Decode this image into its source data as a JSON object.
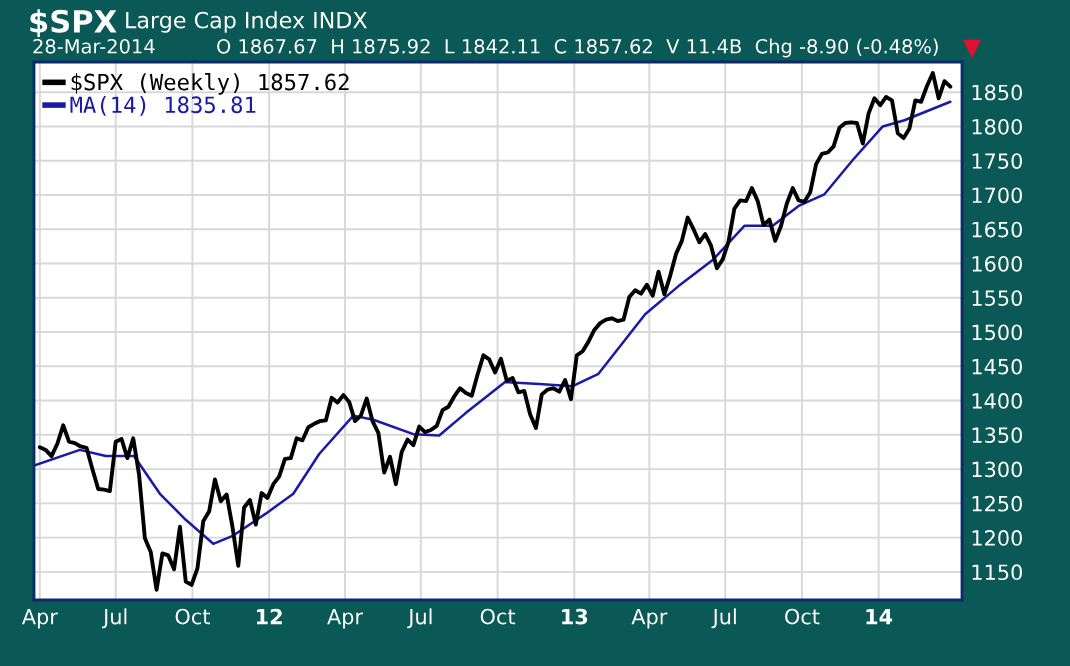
{
  "chart_data": {
    "type": "line",
    "title": "$SPX",
    "subtitle": "Large Cap Index INDX",
    "annotations": [
      "28-Mar-2014",
      "O 1867.67  H 1875.92  L 1842.11  C 1857.62  V 11.4B  Chg -8.90 (-0.48%)"
    ],
    "x": [
      "2011-04-01",
      "2011-04-08",
      "2011-04-15",
      "2011-04-22",
      "2011-04-29",
      "2011-05-06",
      "2011-05-13",
      "2011-05-20",
      "2011-05-27",
      "2011-06-03",
      "2011-06-10",
      "2011-06-17",
      "2011-06-24",
      "2011-07-01",
      "2011-07-08",
      "2011-07-15",
      "2011-07-22",
      "2011-07-29",
      "2011-08-05",
      "2011-08-12",
      "2011-08-19",
      "2011-08-26",
      "2011-09-02",
      "2011-09-09",
      "2011-09-16",
      "2011-09-23",
      "2011-09-30",
      "2011-10-07",
      "2011-10-14",
      "2011-10-21",
      "2011-10-28",
      "2011-11-04",
      "2011-11-11",
      "2011-11-18",
      "2011-11-25",
      "2011-12-02",
      "2011-12-09",
      "2011-12-16",
      "2011-12-23",
      "2011-12-30",
      "2012-01-06",
      "2012-01-13",
      "2012-01-20",
      "2012-01-27",
      "2012-02-03",
      "2012-02-10",
      "2012-02-17",
      "2012-02-24",
      "2012-03-02",
      "2012-03-09",
      "2012-03-16",
      "2012-03-23",
      "2012-03-30",
      "2012-04-06",
      "2012-04-13",
      "2012-04-20",
      "2012-04-27",
      "2012-05-04",
      "2012-05-11",
      "2012-05-18",
      "2012-05-25",
      "2012-06-01",
      "2012-06-08",
      "2012-06-15",
      "2012-06-22",
      "2012-06-29",
      "2012-07-06",
      "2012-07-13",
      "2012-07-20",
      "2012-07-27",
      "2012-08-03",
      "2012-08-10",
      "2012-08-17",
      "2012-08-24",
      "2012-08-31",
      "2012-09-07",
      "2012-09-14",
      "2012-09-21",
      "2012-09-28",
      "2012-10-05",
      "2012-10-12",
      "2012-10-19",
      "2012-10-26",
      "2012-11-02",
      "2012-11-09",
      "2012-11-16",
      "2012-11-23",
      "2012-11-30",
      "2012-12-07",
      "2012-12-14",
      "2012-12-21",
      "2012-12-28",
      "2013-01-04",
      "2013-01-11",
      "2013-01-18",
      "2013-01-25",
      "2013-02-01",
      "2013-02-08",
      "2013-02-15",
      "2013-02-22",
      "2013-03-01",
      "2013-03-08",
      "2013-03-15",
      "2013-03-22",
      "2013-03-29",
      "2013-04-05",
      "2013-04-12",
      "2013-04-19",
      "2013-04-26",
      "2013-05-03",
      "2013-05-10",
      "2013-05-17",
      "2013-05-24",
      "2013-05-31",
      "2013-06-07",
      "2013-06-14",
      "2013-06-21",
      "2013-06-28",
      "2013-07-05",
      "2013-07-12",
      "2013-07-19",
      "2013-07-26",
      "2013-08-02",
      "2013-08-09",
      "2013-08-16",
      "2013-08-23",
      "2013-08-30",
      "2013-09-06",
      "2013-09-13",
      "2013-09-20",
      "2013-09-27",
      "2013-10-04",
      "2013-10-11",
      "2013-10-18",
      "2013-10-25",
      "2013-11-01",
      "2013-11-08",
      "2013-11-15",
      "2013-11-22",
      "2013-11-29",
      "2013-12-06",
      "2013-12-13",
      "2013-12-20",
      "2013-12-27",
      "2014-01-03",
      "2014-01-10",
      "2014-01-17",
      "2014-01-24",
      "2014-01-31",
      "2014-02-07",
      "2014-02-14",
      "2014-02-21",
      "2014-02-28",
      "2014-03-07",
      "2014-03-14",
      "2014-03-21",
      "2014-03-28"
    ],
    "series": [
      {
        "name": "$SPX (Weekly) 1857.62",
        "color": "#000000",
        "values": [
          1332,
          1328,
          1319,
          1337,
          1364,
          1340,
          1338,
          1333,
          1331,
          1300,
          1271,
          1270,
          1268,
          1340,
          1344,
          1316,
          1345,
          1292,
          1199,
          1179,
          1124,
          1177,
          1174,
          1154,
          1216,
          1136,
          1131,
          1155,
          1224,
          1238,
          1285,
          1253,
          1263,
          1216,
          1159,
          1244,
          1255,
          1219,
          1265,
          1258,
          1278,
          1289,
          1315,
          1316,
          1345,
          1342,
          1361,
          1366,
          1370,
          1371,
          1404,
          1397,
          1408,
          1398,
          1370,
          1378,
          1403,
          1370,
          1353,
          1295,
          1318,
          1278,
          1325,
          1343,
          1335,
          1362,
          1354,
          1357,
          1363,
          1386,
          1391,
          1406,
          1418,
          1411,
          1407,
          1438,
          1466,
          1460,
          1441,
          1461,
          1429,
          1433,
          1412,
          1414,
          1380,
          1360,
          1409,
          1416,
          1418,
          1413,
          1430,
          1402,
          1466,
          1472,
          1486,
          1503,
          1513,
          1518,
          1520,
          1516,
          1518,
          1551,
          1561,
          1556,
          1569,
          1553,
          1588,
          1555,
          1582,
          1614,
          1633,
          1667,
          1650,
          1631,
          1643,
          1626,
          1593,
          1606,
          1632,
          1680,
          1692,
          1691,
          1710,
          1691,
          1656,
          1664,
          1633,
          1655,
          1688,
          1710,
          1692,
          1690,
          1704,
          1745,
          1760,
          1762,
          1771,
          1798,
          1805,
          1806,
          1805,
          1775,
          1819,
          1841,
          1831,
          1843,
          1838,
          1790,
          1783,
          1797,
          1838,
          1836,
          1859,
          1878,
          1841,
          1866,
          1858
        ]
      },
      {
        "name": "MA(14) 1835.81",
        "color": "#1a1aa6",
        "x": [
          "2011-03-25",
          "2011-05-19",
          "2011-06-19",
          "2011-07-23",
          "2011-08-23",
          "2011-09-23",
          "2011-10-26",
          "2011-11-19",
          "2011-12-28",
          "2012-01-30",
          "2012-03-01",
          "2012-04-11",
          "2012-05-05",
          "2012-06-22",
          "2012-07-23",
          "2012-08-23",
          "2012-10-10",
          "2012-11-20",
          "2012-12-30",
          "2013-01-30",
          "2013-03-27",
          "2013-05-06",
          "2013-06-16",
          "2013-07-24",
          "2013-08-27",
          "2013-09-27",
          "2013-10-28",
          "2013-12-01",
          "2014-01-06",
          "2014-02-01",
          "2014-03-28"
        ],
        "values": [
          1305,
          1328,
          1319,
          1319,
          1264,
          1226,
          1191,
          1203,
          1235,
          1264,
          1322,
          1378,
          1372,
          1351,
          1349,
          1381,
          1427,
          1424,
          1421,
          1439,
          1526,
          1567,
          1605,
          1655,
          1655,
          1684,
          1701,
          1751,
          1800,
          1809,
          1836
        ]
      }
    ],
    "xlim": [
      "2011-03-25",
      "2014-04-11"
    ],
    "xticks": [
      {
        "value": "2011-04-01",
        "label": "Apr"
      },
      {
        "value": "2011-07-01",
        "label": "Jul"
      },
      {
        "value": "2011-10-01",
        "label": "Oct"
      },
      {
        "value": "2012-01-01",
        "label": "12"
      },
      {
        "value": "2012-04-01",
        "label": "Apr"
      },
      {
        "value": "2012-07-01",
        "label": "Jul"
      },
      {
        "value": "2012-10-01",
        "label": "Oct"
      },
      {
        "value": "2013-01-01",
        "label": "13"
      },
      {
        "value": "2013-04-01",
        "label": "Apr"
      },
      {
        "value": "2013-07-01",
        "label": "Jul"
      },
      {
        "value": "2013-10-01",
        "label": "Oct"
      },
      {
        "value": "2014-01-01",
        "label": "14"
      }
    ],
    "ylim": [
      1109,
      1894
    ],
    "yticks": [
      1150,
      1200,
      1250,
      1300,
      1350,
      1400,
      1450,
      1500,
      1550,
      1600,
      1650,
      1700,
      1750,
      1800,
      1850
    ],
    "grid": true,
    "legend": "top left",
    "marker": "none",
    "line_style": "solid"
  }
}
